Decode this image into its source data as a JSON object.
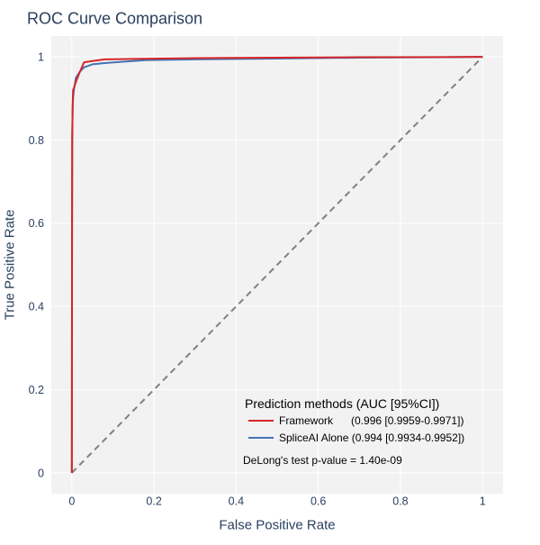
{
  "chart_data": {
    "type": "line",
    "title": "ROC Curve Comparison",
    "xlabel": "False Positive Rate",
    "ylabel": "True Positive Rate",
    "xlim": [
      -0.05,
      1.05
    ],
    "ylim": [
      -0.05,
      1.05
    ],
    "x_ticks": [
      0,
      0.2,
      0.4,
      0.6,
      0.8,
      1
    ],
    "y_ticks": [
      0,
      0.2,
      0.4,
      0.6,
      0.8,
      1
    ],
    "x_tick_labels": [
      "0",
      "0.2",
      "0.4",
      "0.6",
      "0.8",
      "1"
    ],
    "y_tick_labels": [
      "0",
      "0.2",
      "0.4",
      "0.6",
      "0.8",
      "1"
    ],
    "grid": true,
    "background_color": "#f2f2f2",
    "legend_title": "Prediction methods (AUC [95%CI])",
    "legend_position": "bottom-right",
    "series": [
      {
        "name": "Framework",
        "legend_label": "Framework      (0.996 [0.9959-0.9971])",
        "color": "#d62728",
        "x": [
          0,
          0.0005,
          0.001,
          0.002,
          0.003,
          0.005,
          0.01,
          0.02,
          0.03,
          0.05,
          0.08,
          0.15,
          0.3,
          0.5,
          0.7,
          0.9,
          1.0
        ],
        "y": [
          0,
          0.55,
          0.8,
          0.88,
          0.92,
          0.925,
          0.94,
          0.965,
          0.987,
          0.99,
          0.994,
          0.995,
          0.997,
          0.998,
          0.999,
          0.9995,
          1.0
        ]
      },
      {
        "name": "SpliceAI Alone",
        "legend_label": "SpliceAI Alone (0.994 [0.9934-0.9952])",
        "color": "#4472b4",
        "x": [
          0,
          0.0005,
          0.001,
          0.002,
          0.003,
          0.005,
          0.01,
          0.02,
          0.03,
          0.05,
          0.08,
          0.12,
          0.18,
          0.3,
          0.5,
          0.7,
          0.9,
          1.0
        ],
        "y": [
          0,
          0.6,
          0.82,
          0.88,
          0.9,
          0.92,
          0.95,
          0.965,
          0.975,
          0.982,
          0.985,
          0.988,
          0.992,
          0.994,
          0.996,
          0.998,
          0.999,
          1.0
        ]
      },
      {
        "name": "Random",
        "color": "#808080",
        "dash": true,
        "show_in_legend": false,
        "x": [
          0,
          1
        ],
        "y": [
          0,
          1
        ]
      }
    ],
    "annotations": [
      "DeLong's test p-value = 1.40e-09"
    ]
  }
}
